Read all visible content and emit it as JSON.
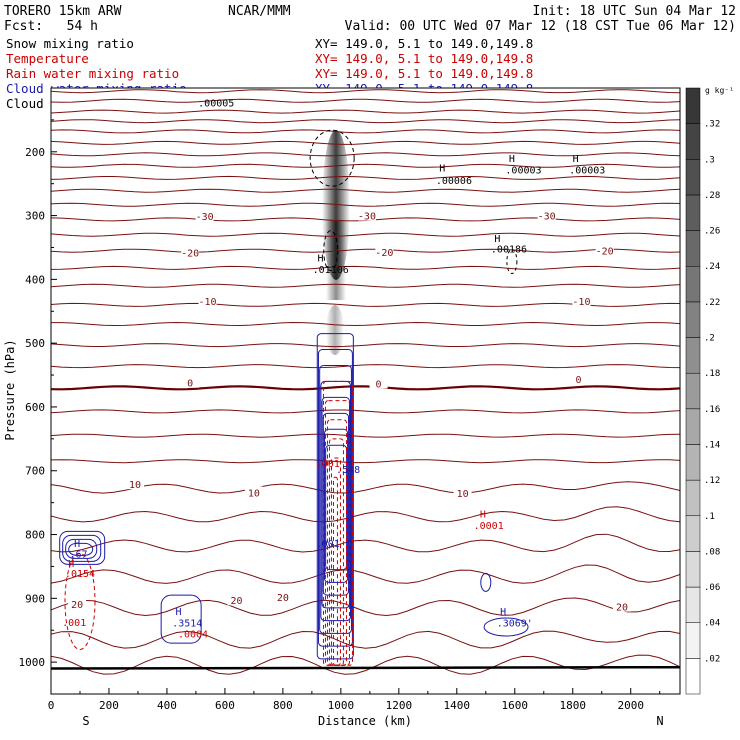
{
  "header": {
    "model": "TORERO  15km ARW",
    "center": "NCAR/MMM",
    "init": "Init: 18 UTC Sun 04 Mar 12",
    "fcst": "Fcst:   54 h",
    "valid": "Valid: 00 UTC Wed 07 Mar 12 (18 CST Tue 06 Mar 12)"
  },
  "fields": [
    {
      "name": "Snow mixing ratio",
      "xy": "XY= 149.0,  5.1 to 149.0,149.8",
      "color": "#000000"
    },
    {
      "name": "Temperature",
      "xy": "XY= 149.0,  5.1 to 149.0,149.8",
      "color": "#cc0000"
    },
    {
      "name": "Rain water mixing ratio",
      "xy": "XY= 149.0,  5.1 to 149.0,149.8",
      "color": "#cc0000"
    },
    {
      "name": "Cloud water mixing ratio",
      "xy": "XY= 149.0,  5.1 to 149.0,149.8",
      "color": "#1a1aaa"
    },
    {
      "name": "Cloud ice mixing ratio",
      "xy": "XY= 149.0,  5.1 to 149.0,149.8",
      "color": "#000000"
    }
  ],
  "colors": {
    "temperature": "#7a1010",
    "temperature_zero": "#6a0000",
    "rain": "#cc0000",
    "cloud_water": "#1a1aaa",
    "ice": "#000000"
  },
  "chart_data": {
    "type": "cross-section",
    "xlabel": "Distance (km)",
    "ylabel": "Pressure (hPa)",
    "xlim": [
      0,
      2170
    ],
    "ylim": [
      1050,
      100
    ],
    "x_ticks": [
      0,
      200,
      400,
      600,
      800,
      1000,
      1200,
      1400,
      1600,
      1800,
      2000
    ],
    "y_ticks": [
      200,
      300,
      400,
      500,
      600,
      700,
      800,
      900,
      1000
    ],
    "end_labels": {
      "left": "S",
      "right": "N"
    },
    "colorbar": {
      "unit": "g kg⁻¹",
      "ticks": [
        ".02",
        ".04",
        ".06",
        ".08",
        ".1",
        ".12",
        ".14",
        ".16",
        ".18",
        ".2",
        ".22",
        ".24",
        ".26",
        ".28",
        ".3",
        ".32"
      ]
    },
    "isotherm_labels": [
      {
        "text": "-30",
        "x": 530,
        "p": 301
      },
      {
        "text": "-30",
        "x": 1090,
        "p": 300
      },
      {
        "text": "-30",
        "x": 1710,
        "p": 300
      },
      {
        "text": "-20",
        "x": 480,
        "p": 358
      },
      {
        "text": "-20",
        "x": 1150,
        "p": 357
      },
      {
        "text": "-20",
        "x": 1910,
        "p": 355
      },
      {
        "text": "-10",
        "x": 540,
        "p": 434
      },
      {
        "text": "-10",
        "x": 1830,
        "p": 434
      },
      {
        "text": "0",
        "x": 480,
        "p": 562
      },
      {
        "text": "0",
        "x": 1130,
        "p": 563
      },
      {
        "text": "0",
        "x": 1820,
        "p": 556
      },
      {
        "text": "10",
        "x": 290,
        "p": 721
      },
      {
        "text": "10",
        "x": 700,
        "p": 734
      },
      {
        "text": "10",
        "x": 1420,
        "p": 735
      },
      {
        "text": "20",
        "x": 90,
        "p": 909
      },
      {
        "text": "20",
        "x": 640,
        "p": 903
      },
      {
        "text": "20",
        "x": 800,
        "p": 898
      },
      {
        "text": "20",
        "x": 1970,
        "p": 913
      }
    ],
    "annotations": [
      {
        "text": ".00005",
        "x": 570,
        "p": 123,
        "color": "ice"
      },
      {
        "text": "H",
        "x": 1350,
        "p": 225,
        "color": "ice"
      },
      {
        "text": ".00006",
        "x": 1390,
        "p": 244,
        "color": "ice"
      },
      {
        "text": "H",
        "x": 1590,
        "p": 210,
        "color": "ice"
      },
      {
        "text": ".00003",
        "x": 1630,
        "p": 228,
        "color": "ice"
      },
      {
        "text": "H",
        "x": 1810,
        "p": 210,
        "color": "ice"
      },
      {
        "text": ".00003",
        "x": 1850,
        "p": 228,
        "color": "ice"
      },
      {
        "text": "H",
        "x": 1540,
        "p": 335,
        "color": "ice"
      },
      {
        "text": ".00186",
        "x": 1580,
        "p": 352,
        "color": "ice"
      },
      {
        "text": "H",
        "x": 930,
        "p": 366,
        "color": "ice"
      },
      {
        "text": ".01106",
        "x": 965,
        "p": 384,
        "color": "ice"
      },
      {
        "text": ".001",
        "x": 955,
        "p": 688,
        "color": "rain"
      },
      {
        "text": ".548",
        "x": 1025,
        "p": 697,
        "color": "cloud_water"
      },
      {
        "text": "H",
        "x": 1490,
        "p": 767,
        "color": "rain"
      },
      {
        "text": ".0001",
        "x": 1510,
        "p": 785,
        "color": "rain"
      },
      {
        "text": ".001",
        "x": 955,
        "p": 813,
        "color": "cloud_water"
      },
      {
        "text": "H",
        "x": 90,
        "p": 813,
        "color": "cloud_water"
      },
      {
        "text": ".67",
        "x": 95,
        "p": 830,
        "color": "cloud_water"
      },
      {
        "text": "H",
        "x": 70,
        "p": 845,
        "color": "rain"
      },
      {
        "text": ".0154",
        "x": 100,
        "p": 860,
        "color": "rain"
      },
      {
        "text": ".001",
        "x": 80,
        "p": 937,
        "color": "rain"
      },
      {
        "text": "H",
        "x": 440,
        "p": 920,
        "color": "cloud_water"
      },
      {
        "text": ".3514",
        "x": 470,
        "p": 938,
        "color": "cloud_water"
      },
      {
        "text": ".0004",
        "x": 490,
        "p": 955,
        "color": "rain"
      },
      {
        "text": "H",
        "x": 1560,
        "p": 920,
        "color": "cloud_water"
      },
      {
        "text": ".3069'",
        "x": 1600,
        "p": 938,
        "color": "cloud_water"
      }
    ]
  }
}
